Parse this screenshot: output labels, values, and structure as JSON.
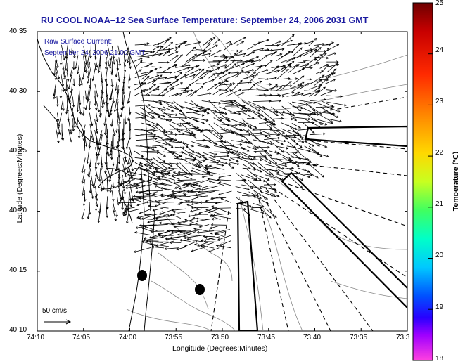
{
  "title": "RU COOL  NOAA–12  Sea Surface Temperature:  September 24, 2006 2031 GMT",
  "current_label": {
    "line1": "Raw Surface Current:",
    "line2": "September 24, 2006 21:00 GMT"
  },
  "x_axis": {
    "label": "Longitude (Degrees:Minutes)",
    "ticks": [
      "74:10",
      "74:05",
      "74:00",
      "73:55",
      "73:50",
      "73:45",
      "73:40",
      "73:35",
      "73:3"
    ]
  },
  "y_axis": {
    "label": "Latitude (Degrees:Minutes)",
    "ticks": [
      "40:35",
      "40:30",
      "40:25",
      "40:20",
      "40:15",
      "40:10"
    ]
  },
  "colorbar": {
    "label": "Temperature (°C)",
    "ticks": [
      "25",
      "24",
      "23",
      "22",
      "21",
      "20",
      "19",
      "18"
    ]
  },
  "scale_arrow": {
    "label": "50 cm/s"
  },
  "colors": {
    "title_text": "#1a1aa0",
    "coast": "#000000",
    "contours": "#888888",
    "arrows": "#000000"
  }
}
